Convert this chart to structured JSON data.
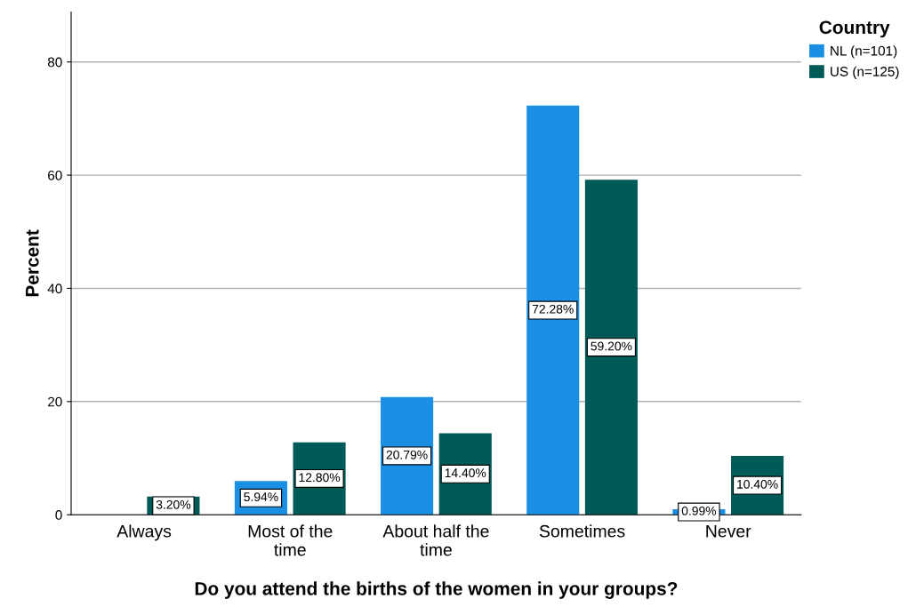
{
  "chart_data": {
    "type": "bar",
    "xlabel": "Do you attend the births of the women in your groups?",
    "ylabel": "Percent",
    "legend_title": "Country",
    "categories": [
      "Always",
      "Most of the\ntime",
      "About half the\ntime",
      "Sometimes",
      "Never"
    ],
    "series": [
      {
        "name": "NL (n=101)",
        "color": "#1a8fe3",
        "values": [
          null,
          5.94,
          20.79,
          72.28,
          0.99
        ],
        "value_labels": [
          null,
          "5.94%",
          "20.79%",
          "72.28%",
          "0.99%"
        ]
      },
      {
        "name": "US (n=125)",
        "color": "#005a57",
        "values": [
          3.2,
          12.8,
          14.4,
          59.2,
          10.4
        ],
        "value_labels": [
          "3.20%",
          "12.80%",
          "14.40%",
          "59.20%",
          "10.40%"
        ]
      }
    ],
    "ylim": [
      0,
      88.8
    ],
    "yticks": [
      0,
      20,
      40,
      60,
      80
    ],
    "grid": "y",
    "legend": "top right"
  }
}
